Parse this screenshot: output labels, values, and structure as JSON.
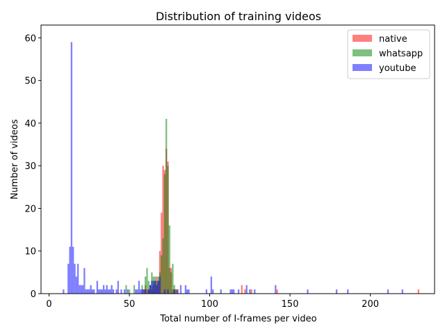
{
  "chart_data": {
    "type": "bar",
    "title": "Distribution of training videos",
    "xlabel": "Total number of I-frames per video",
    "ylabel": "Number of videos",
    "xlim": [
      -5,
      240
    ],
    "ylim": [
      0,
      63
    ],
    "xticks": [
      0,
      50,
      100,
      150,
      200
    ],
    "yticks": [
      0,
      10,
      20,
      30,
      40,
      50,
      60
    ],
    "legend_position": "top-right",
    "bar_width": 1,
    "series": [
      {
        "name": "native",
        "color": "#ff0000",
        "points": [
          {
            "x": 59,
            "y": 1
          },
          {
            "x": 60,
            "y": 2
          },
          {
            "x": 61,
            "y": 1
          },
          {
            "x": 62,
            "y": 1
          },
          {
            "x": 63,
            "y": 2
          },
          {
            "x": 64,
            "y": 1
          },
          {
            "x": 65,
            "y": 2
          },
          {
            "x": 66,
            "y": 3
          },
          {
            "x": 67,
            "y": 4
          },
          {
            "x": 68,
            "y": 3
          },
          {
            "x": 69,
            "y": 10
          },
          {
            "x": 70,
            "y": 19
          },
          {
            "x": 71,
            "y": 30
          },
          {
            "x": 72,
            "y": 29
          },
          {
            "x": 73,
            "y": 34
          },
          {
            "x": 74,
            "y": 31
          },
          {
            "x": 75,
            "y": 6
          },
          {
            "x": 76,
            "y": 6
          },
          {
            "x": 77,
            "y": 1
          },
          {
            "x": 78,
            "y": 1
          },
          {
            "x": 79,
            "y": 1
          },
          {
            "x": 80,
            "y": 1
          },
          {
            "x": 120,
            "y": 2
          },
          {
            "x": 122,
            "y": 1
          },
          {
            "x": 126,
            "y": 1
          },
          {
            "x": 142,
            "y": 1
          },
          {
            "x": 230,
            "y": 1
          }
        ]
      },
      {
        "name": "whatsapp",
        "color": "#008000",
        "points": [
          {
            "x": 48,
            "y": 2
          },
          {
            "x": 50,
            "y": 1
          },
          {
            "x": 53,
            "y": 2
          },
          {
            "x": 58,
            "y": 2
          },
          {
            "x": 60,
            "y": 4
          },
          {
            "x": 61,
            "y": 6
          },
          {
            "x": 62,
            "y": 3
          },
          {
            "x": 63,
            "y": 2
          },
          {
            "x": 64,
            "y": 5
          },
          {
            "x": 65,
            "y": 4
          },
          {
            "x": 66,
            "y": 4
          },
          {
            "x": 67,
            "y": 3
          },
          {
            "x": 68,
            "y": 4
          },
          {
            "x": 69,
            "y": 5
          },
          {
            "x": 70,
            "y": 9
          },
          {
            "x": 71,
            "y": 13
          },
          {
            "x": 72,
            "y": 28
          },
          {
            "x": 73,
            "y": 41
          },
          {
            "x": 74,
            "y": 30
          },
          {
            "x": 75,
            "y": 16
          },
          {
            "x": 76,
            "y": 5
          },
          {
            "x": 77,
            "y": 7
          },
          {
            "x": 78,
            "y": 2
          },
          {
            "x": 79,
            "y": 1
          }
        ]
      },
      {
        "name": "youtube",
        "color": "#0000ff",
        "points": [
          {
            "x": 9,
            "y": 1
          },
          {
            "x": 12,
            "y": 7
          },
          {
            "x": 13,
            "y": 11
          },
          {
            "x": 14,
            "y": 59
          },
          {
            "x": 15,
            "y": 11
          },
          {
            "x": 16,
            "y": 7
          },
          {
            "x": 17,
            "y": 4
          },
          {
            "x": 18,
            "y": 7
          },
          {
            "x": 19,
            "y": 2
          },
          {
            "x": 20,
            "y": 2
          },
          {
            "x": 21,
            "y": 2
          },
          {
            "x": 22,
            "y": 6
          },
          {
            "x": 23,
            "y": 1
          },
          {
            "x": 24,
            "y": 1
          },
          {
            "x": 25,
            "y": 1
          },
          {
            "x": 26,
            "y": 2
          },
          {
            "x": 27,
            "y": 1
          },
          {
            "x": 28,
            "y": 1
          },
          {
            "x": 30,
            "y": 3
          },
          {
            "x": 31,
            "y": 1
          },
          {
            "x": 32,
            "y": 1
          },
          {
            "x": 33,
            "y": 1
          },
          {
            "x": 34,
            "y": 2
          },
          {
            "x": 35,
            "y": 1
          },
          {
            "x": 36,
            "y": 2
          },
          {
            "x": 37,
            "y": 1
          },
          {
            "x": 38,
            "y": 1
          },
          {
            "x": 39,
            "y": 2
          },
          {
            "x": 40,
            "y": 1
          },
          {
            "x": 42,
            "y": 1
          },
          {
            "x": 43,
            "y": 3
          },
          {
            "x": 45,
            "y": 1
          },
          {
            "x": 47,
            "y": 1
          },
          {
            "x": 49,
            "y": 1
          },
          {
            "x": 54,
            "y": 1
          },
          {
            "x": 55,
            "y": 1
          },
          {
            "x": 56,
            "y": 3
          },
          {
            "x": 57,
            "y": 1
          },
          {
            "x": 58,
            "y": 1
          },
          {
            "x": 59,
            "y": 1
          },
          {
            "x": 60,
            "y": 1
          },
          {
            "x": 62,
            "y": 1
          },
          {
            "x": 63,
            "y": 2
          },
          {
            "x": 64,
            "y": 3
          },
          {
            "x": 65,
            "y": 3
          },
          {
            "x": 66,
            "y": 3
          },
          {
            "x": 67,
            "y": 2
          },
          {
            "x": 68,
            "y": 3
          },
          {
            "x": 69,
            "y": 4
          },
          {
            "x": 72,
            "y": 1
          },
          {
            "x": 74,
            "y": 1
          },
          {
            "x": 78,
            "y": 1
          },
          {
            "x": 80,
            "y": 1
          },
          {
            "x": 82,
            "y": 2
          },
          {
            "x": 85,
            "y": 2
          },
          {
            "x": 86,
            "y": 1
          },
          {
            "x": 87,
            "y": 1
          },
          {
            "x": 98,
            "y": 1
          },
          {
            "x": 101,
            "y": 4
          },
          {
            "x": 102,
            "y": 1
          },
          {
            "x": 107,
            "y": 1
          },
          {
            "x": 113,
            "y": 1
          },
          {
            "x": 114,
            "y": 1
          },
          {
            "x": 115,
            "y": 1
          },
          {
            "x": 118,
            "y": 1
          },
          {
            "x": 123,
            "y": 2
          },
          {
            "x": 125,
            "y": 1
          },
          {
            "x": 128,
            "y": 1
          },
          {
            "x": 141,
            "y": 2
          },
          {
            "x": 161,
            "y": 1
          },
          {
            "x": 179,
            "y": 1
          },
          {
            "x": 186,
            "y": 1
          },
          {
            "x": 211,
            "y": 1
          },
          {
            "x": 220,
            "y": 1
          }
        ]
      }
    ]
  }
}
